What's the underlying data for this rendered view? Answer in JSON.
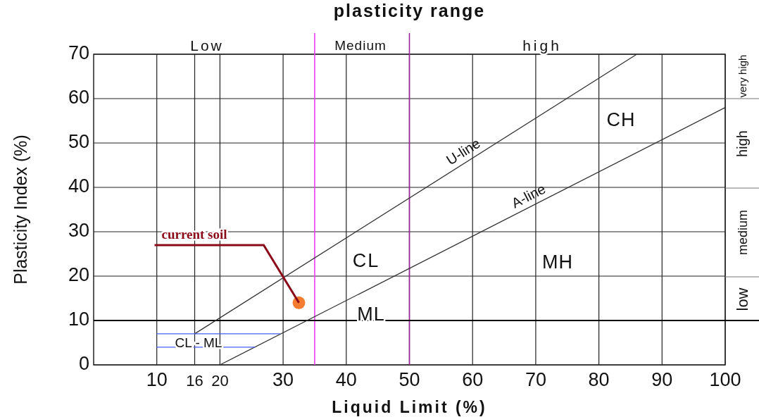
{
  "chart_data": {
    "type": "line",
    "title": "plasticity range",
    "xlabel": "Liquid Limit (%)",
    "ylabel": "Plasticity Index (%)",
    "xlim": [
      0,
      100
    ],
    "ylim": [
      0,
      70
    ],
    "xticks": [
      10,
      16,
      20,
      30,
      40,
      50,
      60,
      70,
      80,
      90,
      100
    ],
    "yticks": [
      0,
      10,
      20,
      30,
      40,
      50,
      60,
      70
    ],
    "grid": true,
    "series": [
      {
        "name": "U-line",
        "color": "#333333",
        "x": [
          16,
          86
        ],
        "values": [
          7,
          70
        ]
      },
      {
        "name": "A-line",
        "color": "#333333",
        "x": [
          20,
          100
        ],
        "values": [
          0,
          58
        ]
      },
      {
        "color": "#4a5cf0",
        "x": [
          10,
          29.5
        ],
        "values": [
          7,
          7
        ]
      },
      {
        "color": "#4a5cf0",
        "x": [
          10,
          25.5
        ],
        "values": [
          4,
          4
        ]
      },
      {
        "type": "scatter",
        "marker": "circle",
        "color": "#f47c30",
        "x": [
          32.5
        ],
        "values": [
          14
        ]
      }
    ],
    "ref_lines": [
      {
        "axis": "x",
        "value": 35,
        "color": "#e83cf0"
      },
      {
        "axis": "x",
        "value": 50,
        "color": "#a0209f"
      },
      {
        "axis": "y",
        "value": 10,
        "color": "#000000"
      }
    ],
    "annotations": [
      {
        "text": "current soil",
        "x": 32.5,
        "y": 14
      },
      "CL",
      "CH",
      "MH",
      "ML",
      "CL - ML",
      "Low",
      "Medium",
      "high",
      "low",
      "medium",
      "high",
      "very high"
    ]
  }
}
